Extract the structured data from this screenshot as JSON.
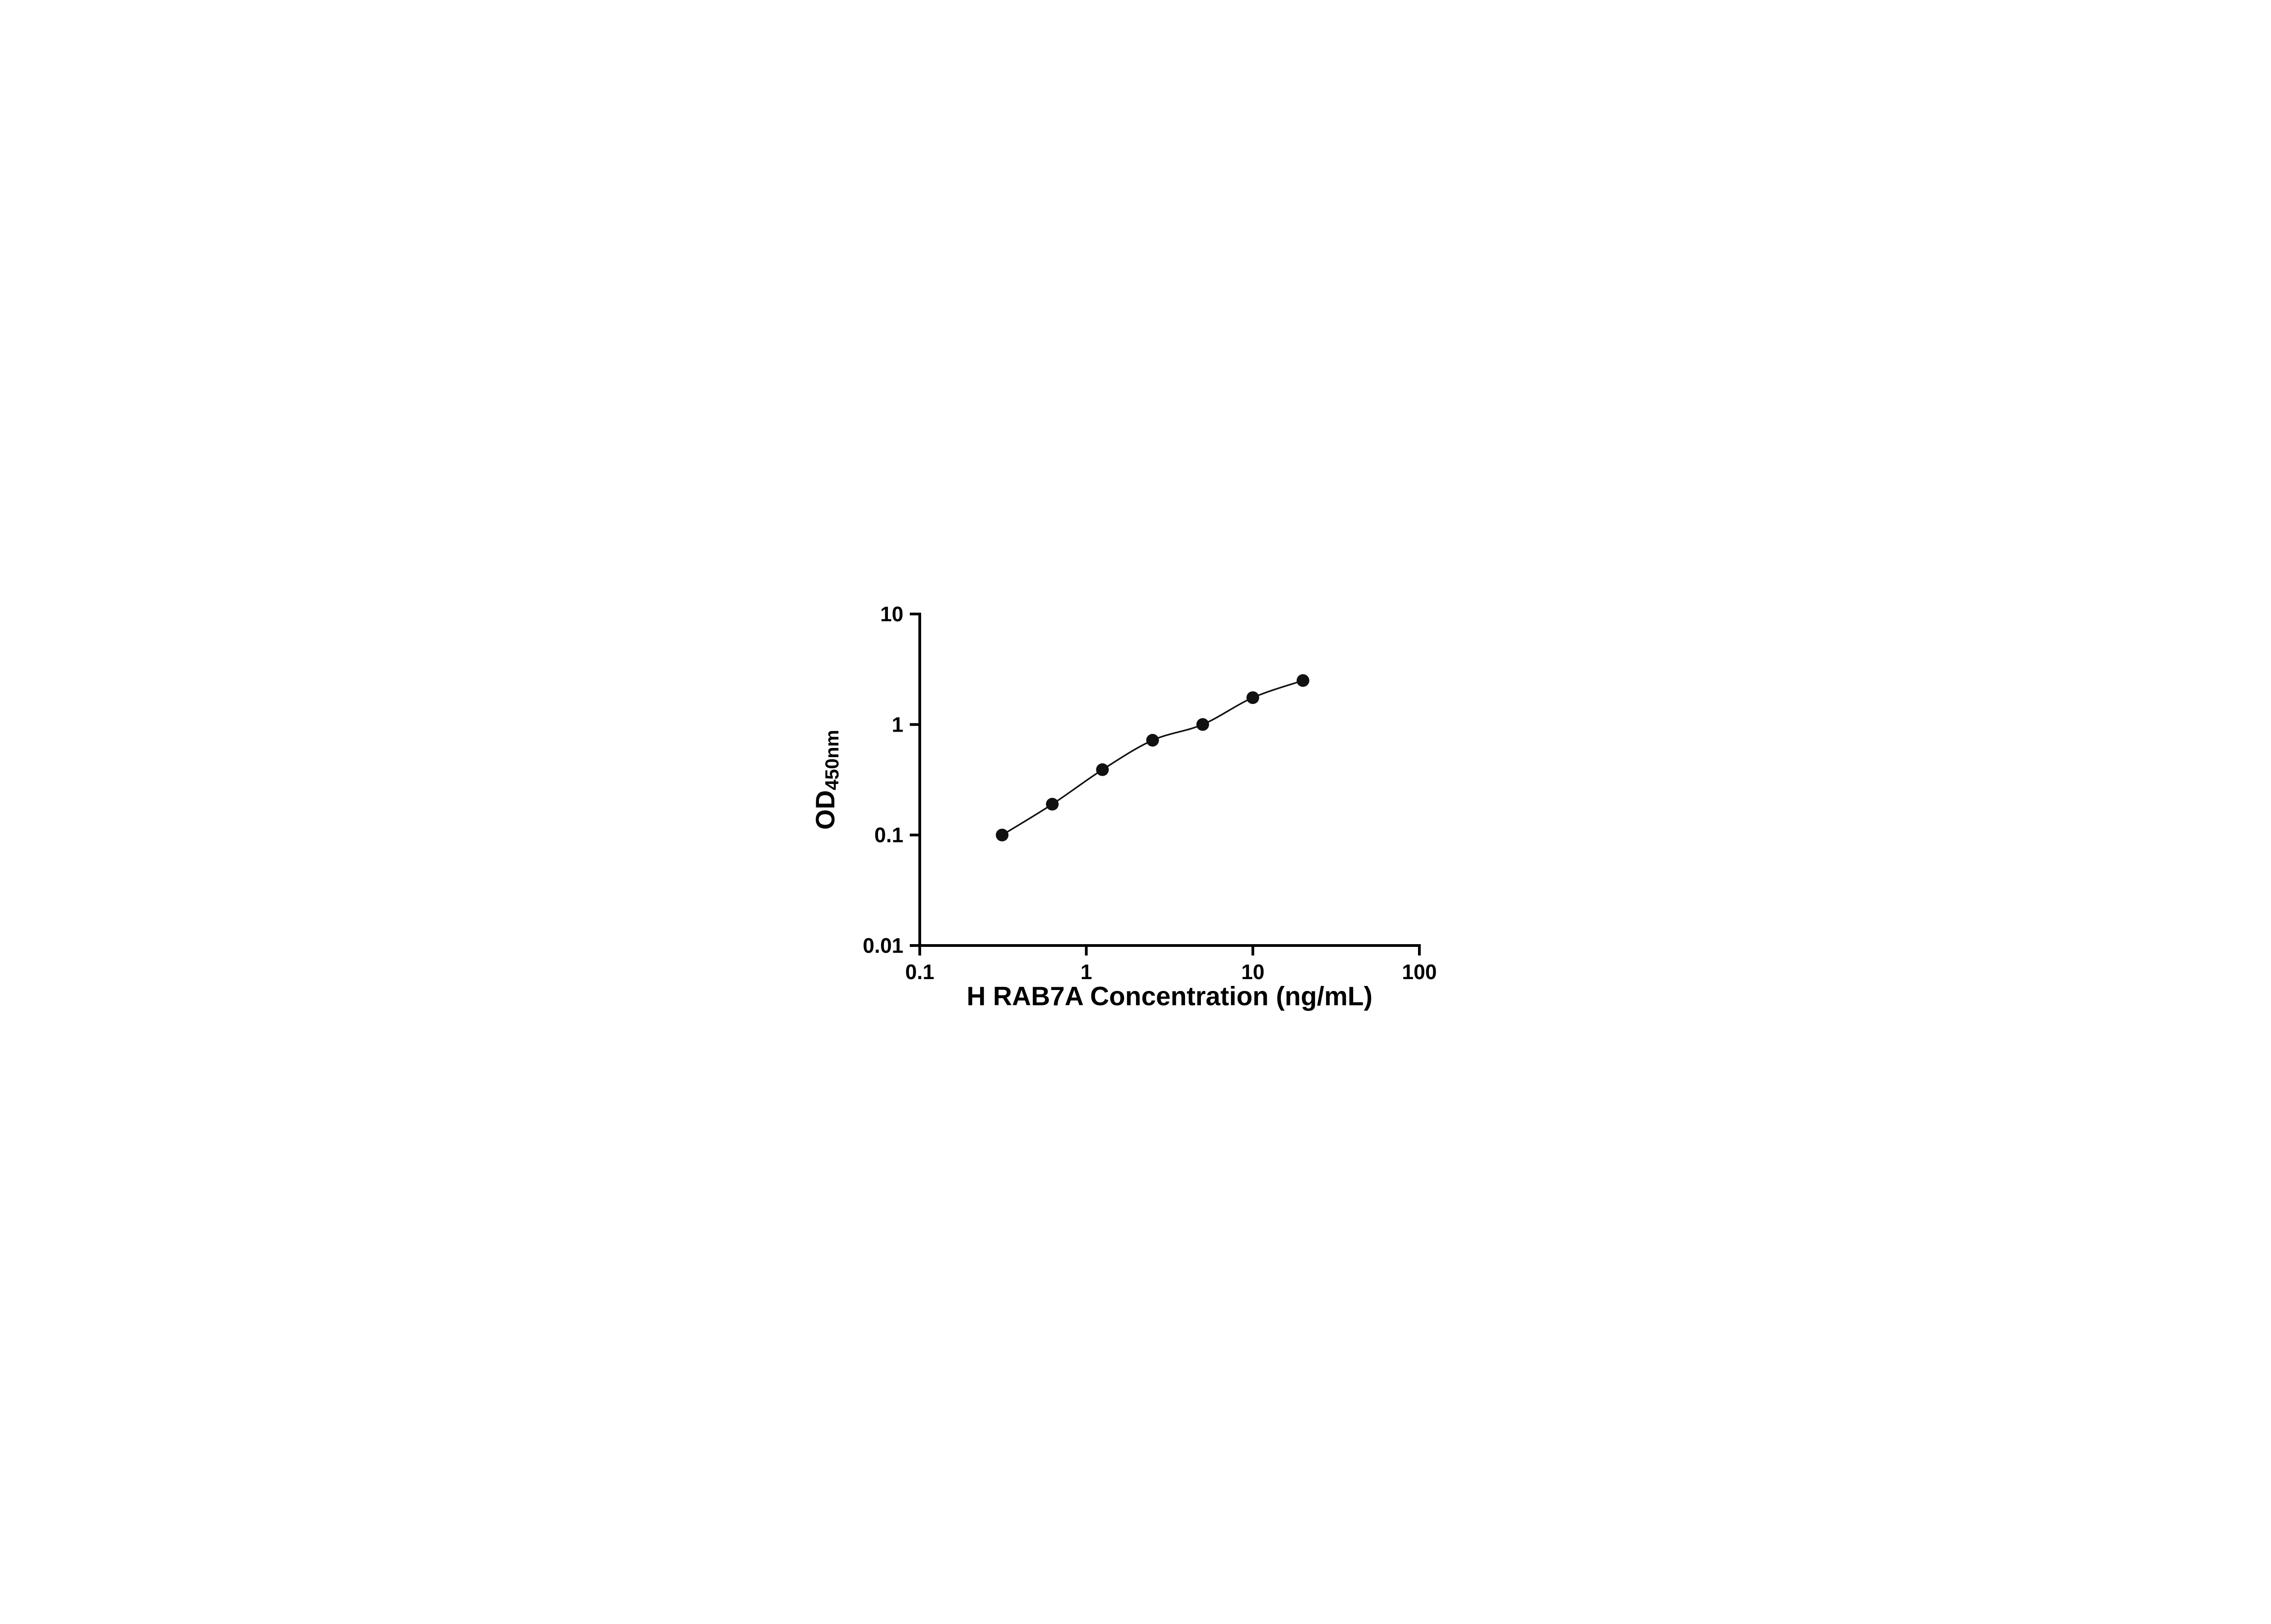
{
  "chart_data": {
    "type": "scatter",
    "title": "",
    "xlabel": "H RAB7A Concentration (ng/mL)",
    "ylabel_main": "OD",
    "ylabel_sub": "450nm",
    "x_scale": "log",
    "y_scale": "log",
    "xlim": [
      0.1,
      100
    ],
    "ylim": [
      0.01,
      10
    ],
    "x_ticks": [
      0.1,
      1,
      10,
      100
    ],
    "x_tick_labels": [
      "0.1",
      "1",
      "10",
      "100"
    ],
    "y_ticks": [
      0.01,
      0.1,
      1,
      10
    ],
    "y_tick_labels": [
      "0.01",
      "0.1",
      "1",
      "10"
    ],
    "points": [
      {
        "x": 0.3125,
        "y": 0.1
      },
      {
        "x": 0.625,
        "y": 0.19
      },
      {
        "x": 1.25,
        "y": 0.39
      },
      {
        "x": 2.5,
        "y": 0.72
      },
      {
        "x": 5,
        "y": 1.0
      },
      {
        "x": 10,
        "y": 1.75
      },
      {
        "x": 20,
        "y": 2.5
      }
    ],
    "curve": "smooth fit through points",
    "grid": "off",
    "legend": "none",
    "marker_color": "#111111",
    "line_color": "#111111",
    "axis_color": "#000000",
    "background": "#ffffff"
  }
}
